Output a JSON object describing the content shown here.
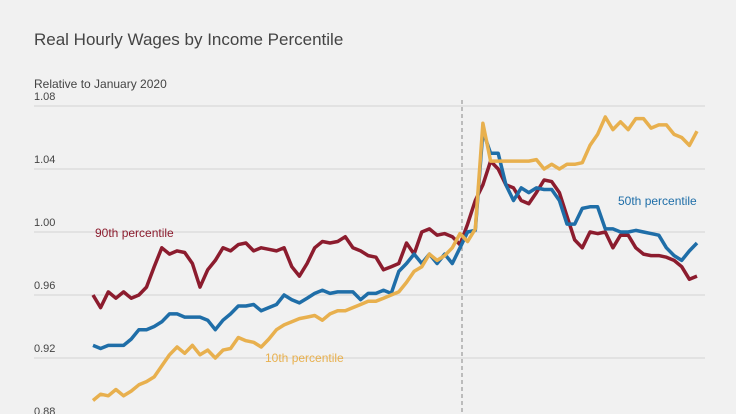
{
  "chart_data": {
    "type": "line",
    "title": "Real Hourly Wages by Income Percentile",
    "subtitle": "Relative to January 2020",
    "ylim": [
      0.88,
      1.08
    ],
    "yticks": [
      0.88,
      0.92,
      0.96,
      {
        "value": 1,
        "label": "1.00"
      },
      1.04,
      1.08
    ],
    "grid": true,
    "series": [
      {
        "name": "90th percentile",
        "color": "#8c1c2e",
        "values": [
          0.96,
          0.952,
          0.962,
          0.958,
          0.962,
          0.958,
          0.96,
          0.965,
          0.978,
          0.99,
          0.986,
          0.988,
          0.987,
          0.98,
          0.965,
          0.976,
          0.982,
          0.99,
          0.988,
          0.992,
          0.993,
          0.988,
          0.99,
          0.989,
          0.988,
          0.99,
          0.978,
          0.972,
          0.98,
          0.99,
          0.994,
          0.993,
          0.994,
          0.997,
          0.99,
          0.988,
          0.985,
          0.984,
          0.976,
          0.978,
          0.98,
          0.993,
          0.986,
          1.0,
          1.002,
          0.998,
          0.999,
          0.997,
          0.992,
          1.005,
          1.02,
          1.03,
          1.045,
          1.04,
          1.03,
          1.028,
          1.02,
          1.018,
          1.025,
          1.033,
          1.032,
          1.025,
          1.01,
          0.995,
          0.99,
          1.0,
          0.999,
          1.0,
          0.99,
          0.998,
          0.998,
          0.99,
          0.986,
          0.985,
          0.985,
          0.984,
          0.982,
          0.978,
          0.97,
          0.972
        ]
      },
      {
        "name": "50th percentile",
        "color": "#1f6ea8",
        "values": [
          0.928,
          0.926,
          0.928,
          0.928,
          0.928,
          0.932,
          0.938,
          0.938,
          0.94,
          0.943,
          0.948,
          0.948,
          0.946,
          0.946,
          0.946,
          0.944,
          0.938,
          0.944,
          0.948,
          0.953,
          0.953,
          0.954,
          0.95,
          0.952,
          0.954,
          0.96,
          0.957,
          0.955,
          0.958,
          0.961,
          0.963,
          0.961,
          0.962,
          0.962,
          0.962,
          0.957,
          0.961,
          0.961,
          0.963,
          0.961,
          0.975,
          0.98,
          0.986,
          0.98,
          0.986,
          0.98,
          0.986,
          0.98,
          0.99,
          1.0,
          1.001,
          1.064,
          1.05,
          1.05,
          1.03,
          1.02,
          1.028,
          1.025,
          1.028,
          1.027,
          1.027,
          1.02,
          1.005,
          1.005,
          1.015,
          1.016,
          1.016,
          1.002,
          1.002,
          1.0,
          1.0,
          1.001,
          1.0,
          0.999,
          0.998,
          0.99,
          0.985,
          0.982,
          0.988,
          0.993
        ]
      },
      {
        "name": "10th percentile",
        "color": "#e8b04e",
        "values": [
          0.893,
          0.897,
          0.896,
          0.9,
          0.896,
          0.899,
          0.903,
          0.905,
          0.908,
          0.915,
          0.922,
          0.927,
          0.923,
          0.928,
          0.922,
          0.925,
          0.92,
          0.925,
          0.926,
          0.933,
          0.931,
          0.93,
          0.927,
          0.932,
          0.938,
          0.941,
          0.943,
          0.945,
          0.946,
          0.947,
          0.944,
          0.948,
          0.95,
          0.95,
          0.952,
          0.954,
          0.956,
          0.956,
          0.958,
          0.96,
          0.962,
          0.968,
          0.975,
          0.978,
          0.986,
          0.982,
          0.985,
          0.99,
          0.999,
          0.994,
          1.002,
          1.069,
          1.045,
          1.045,
          1.045,
          1.045,
          1.045,
          1.045,
          1.046,
          1.04,
          1.043,
          1.04,
          1.043,
          1.043,
          1.044,
          1.055,
          1.062,
          1.073,
          1.065,
          1.07,
          1.065,
          1.072,
          1.072,
          1.066,
          1.068,
          1.068,
          1.062,
          1.06,
          1.055,
          1.064
        ]
      }
    ]
  }
}
